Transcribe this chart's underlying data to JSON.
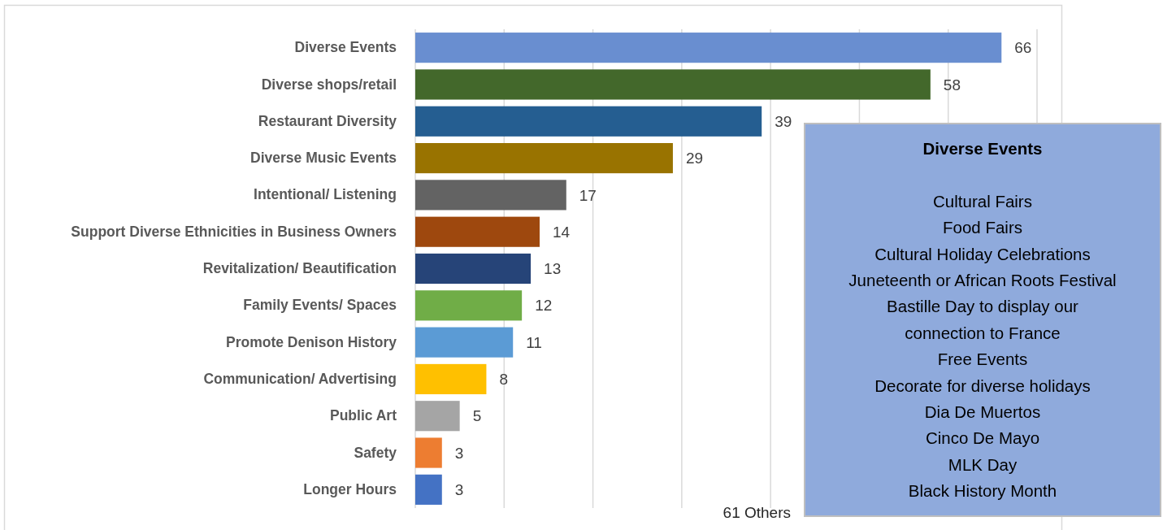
{
  "chart_data": {
    "type": "bar",
    "orientation": "horizontal",
    "categories": [
      "Diverse Events",
      "Diverse shops/retail",
      "Restaurant Diversity",
      "Diverse Music Events",
      "Intentional/ Listening",
      "Support Diverse Ethnicities in Business Owners",
      "Revitalization/ Beautification",
      "Family Events/ Spaces",
      "Promote Denison History",
      "Communication/ Advertising",
      "Public Art",
      "Safety",
      "Longer Hours"
    ],
    "values": [
      66,
      58,
      39,
      29,
      17,
      14,
      13,
      12,
      11,
      8,
      5,
      3,
      3
    ],
    "colors": [
      "#698ed0",
      "#43682b",
      "#255e91",
      "#997300",
      "#636363",
      "#9e480e",
      "#264478",
      "#70ad47",
      "#5b9bd5",
      "#ffc000",
      "#a5a5a5",
      "#ed7d31",
      "#4472c4"
    ],
    "xlim": [
      0,
      70
    ],
    "xticks": [
      {
        "value": 0,
        "label": null
      },
      {
        "value": 10,
        "label": null
      },
      {
        "value": 20,
        "label": null
      },
      {
        "value": 30,
        "label": null
      },
      {
        "value": 40,
        "label": null
      },
      {
        "value": 50,
        "label": null
      },
      {
        "value": 60,
        "label": null
      },
      {
        "value": 70,
        "label": null
      }
    ],
    "grid": "x",
    "tick_labels": "y",
    "data_labels": true,
    "annotations": [
      "61 Others",
      "Diverse Events",
      "Cultural Fairs",
      "Food Fairs",
      "Cultural Holiday Celebrations",
      "Juneteenth or African Roots Festival",
      "Bastille Day to display our connection to France",
      "Free Events",
      "Decorate for diverse holidays",
      "Dia De Muertos",
      "Cinco De Mayo",
      "MLK Day",
      "Black History Month"
    ]
  }
}
